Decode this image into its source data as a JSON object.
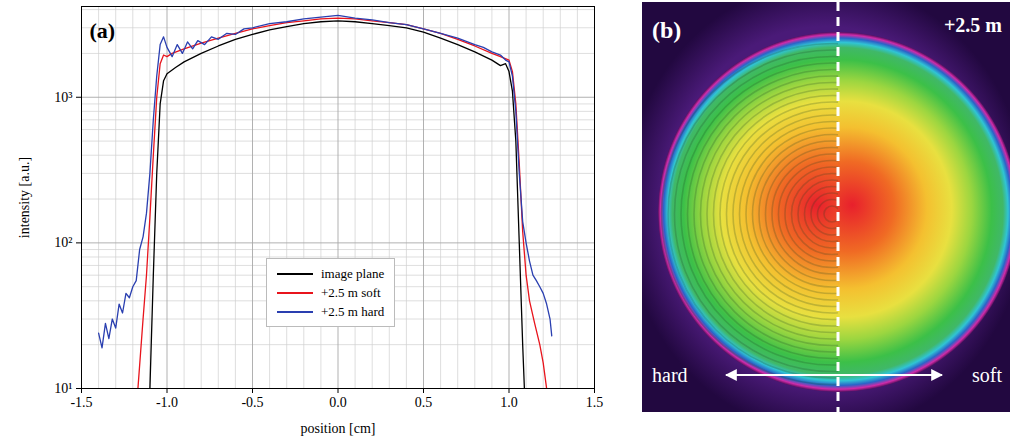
{
  "chart_data": {
    "type": "line",
    "panel_label": "(a)",
    "xlabel": "position [cm]",
    "ylabel": "intensity [a.u.]",
    "log": "y",
    "grid": true,
    "legend": "bottom",
    "xlim": [
      -1.5,
      1.5
    ],
    "xticks": [
      -1.5,
      {
        "value": -1,
        "label": "-1.0"
      },
      -0.5,
      {
        "value": 0,
        "label": "0.0"
      },
      0.5,
      {
        "value": 1,
        "label": "1.0"
      },
      1.5
    ],
    "xticks_minor": [
      -1.4,
      -1.3,
      -1.2,
      -1.1,
      -0.9,
      -0.8,
      -0.7,
      -0.6,
      -0.4,
      -0.3,
      -0.2,
      -0.1,
      0.1,
      0.2,
      0.3,
      0.4,
      0.6,
      0.7,
      0.8,
      0.9,
      1.1,
      1.2,
      1.3,
      1.4
    ],
    "ylim": [
      10,
      4200
    ],
    "yticks": [
      {
        "value": 10,
        "label": "10¹"
      },
      {
        "value": 100,
        "label": "10²"
      },
      {
        "value": 1000,
        "label": "10³"
      }
    ],
    "yticks_minor": [
      20,
      30,
      40,
      50,
      60,
      70,
      80,
      90,
      200,
      300,
      400,
      500,
      600,
      700,
      800,
      900,
      2000,
      3000,
      4000
    ],
    "series": [
      {
        "name": "image plane",
        "color": "#000000",
        "x": [
          -1.1,
          -1.08,
          -1.06,
          -1.04,
          -1.02,
          -1.0,
          -0.95,
          -0.9,
          -0.8,
          -0.7,
          -0.6,
          -0.5,
          -0.4,
          -0.3,
          -0.2,
          -0.1,
          0,
          0.1,
          0.2,
          0.3,
          0.4,
          0.5,
          0.6,
          0.7,
          0.8,
          0.9,
          0.95,
          0.98,
          1.0,
          1.02,
          1.04,
          1.06,
          1.08,
          1.09
        ],
        "values": [
          10,
          60,
          300,
          900,
          1300,
          1450,
          1600,
          1750,
          2000,
          2250,
          2500,
          2700,
          2900,
          3050,
          3200,
          3300,
          3350,
          3300,
          3200,
          3100,
          3000,
          2800,
          2550,
          2300,
          2050,
          1800,
          1650,
          1700,
          1500,
          1100,
          500,
          100,
          20,
          10
        ]
      },
      {
        "name": "+2.5 m soft",
        "color": "#e8141c",
        "x": [
          -1.17,
          -1.14,
          -1.12,
          -1.1,
          -1.08,
          -1.06,
          -1.04,
          -1.02,
          -1.0,
          -0.97,
          -0.9,
          -0.8,
          -0.7,
          -0.6,
          -0.5,
          -0.4,
          -0.3,
          -0.2,
          -0.1,
          0,
          0.1,
          0.2,
          0.3,
          0.4,
          0.5,
          0.6,
          0.7,
          0.8,
          0.9,
          0.95,
          1.0,
          1.02,
          1.04,
          1.06,
          1.08,
          1.1,
          1.12,
          1.15,
          1.18,
          1.2,
          1.22
        ],
        "values": [
          10,
          30,
          60,
          150,
          400,
          1000,
          1700,
          1950,
          1900,
          2000,
          2150,
          2350,
          2550,
          2750,
          2950,
          3100,
          3250,
          3350,
          3450,
          3500,
          3450,
          3350,
          3250,
          3150,
          2950,
          2750,
          2500,
          2250,
          2000,
          1900,
          1800,
          1500,
          900,
          350,
          120,
          60,
          40,
          28,
          20,
          15,
          10
        ]
      },
      {
        "name": "+2.5 m hard",
        "color": "#2a3fb0",
        "x": [
          -1.4,
          -1.38,
          -1.36,
          -1.34,
          -1.32,
          -1.3,
          -1.28,
          -1.26,
          -1.24,
          -1.22,
          -1.2,
          -1.18,
          -1.16,
          -1.14,
          -1.12,
          -1.1,
          -1.08,
          -1.06,
          -1.04,
          -1.02,
          -1.0,
          -0.97,
          -0.94,
          -0.91,
          -0.88,
          -0.85,
          -0.82,
          -0.78,
          -0.74,
          -0.7,
          -0.65,
          -0.6,
          -0.55,
          -0.5,
          -0.4,
          -0.3,
          -0.2,
          -0.1,
          0,
          0.1,
          0.2,
          0.3,
          0.4,
          0.5,
          0.6,
          0.7,
          0.8,
          0.85,
          0.9,
          0.95,
          0.98,
          1.0,
          1.02,
          1.04,
          1.06,
          1.08,
          1.1,
          1.12,
          1.14,
          1.16,
          1.18,
          1.2,
          1.22,
          1.24,
          1.25
        ],
        "values": [
          24,
          19,
          28,
          22,
          30,
          26,
          38,
          33,
          45,
          42,
          50,
          55,
          90,
          110,
          160,
          300,
          700,
          1400,
          2300,
          2600,
          2200,
          1900,
          2300,
          2000,
          2400,
          2150,
          2450,
          2300,
          2600,
          2500,
          2750,
          2700,
          2950,
          3000,
          3200,
          3300,
          3450,
          3550,
          3650,
          3500,
          3400,
          3250,
          3150,
          2950,
          2750,
          2550,
          2300,
          2200,
          2050,
          1950,
          1800,
          1750,
          1400,
          800,
          300,
          140,
          100,
          75,
          60,
          55,
          50,
          45,
          38,
          30,
          23
        ]
      }
    ]
  },
  "image_panel": {
    "panel_label": "(b)",
    "label": "+2.5 m",
    "left_label": "hard",
    "right_label": "soft"
  }
}
